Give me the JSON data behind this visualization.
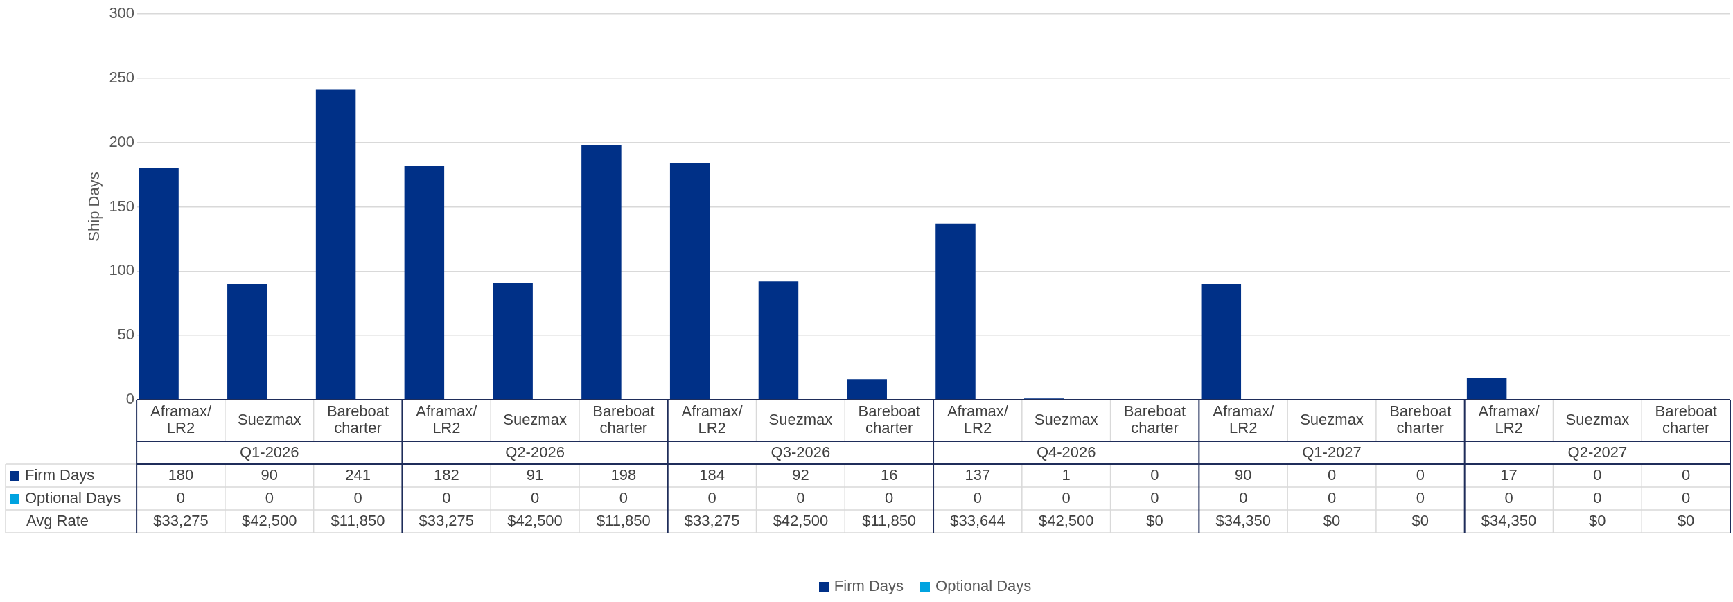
{
  "chart_data": {
    "type": "bar",
    "ylabel": "Ship Days",
    "categories": [
      "Aframax/LR2",
      "Suezmax",
      "Bareboat charter",
      "Aframax/LR2",
      "Suezmax",
      "Bareboat charter",
      "Aframax/LR2",
      "Suezmax",
      "Bareboat charter",
      "Aframax/LR2",
      "Suezmax",
      "Bareboat charter",
      "Aframax/LR2",
      "Suezmax",
      "Bareboat charter",
      "Aframax/LR2",
      "Suezmax",
      "Bareboat charter"
    ],
    "annotations": [
      "Q1-2026",
      "Q2-2026",
      "Q3-2026",
      "Q4-2026",
      "Q1-2027",
      "Q2-2027"
    ],
    "series": [
      {
        "name": "Firm Days",
        "color": "#003087",
        "values": [
          180,
          90,
          241,
          182,
          91,
          198,
          184,
          92,
          16,
          137,
          1,
          0,
          90,
          0,
          0,
          17,
          0,
          0
        ]
      },
      {
        "name": "Optional Days",
        "color": "#00a3e0",
        "values": [
          0,
          0,
          0,
          0,
          0,
          0,
          0,
          0,
          0,
          0,
          0,
          0,
          0,
          0,
          0,
          0,
          0,
          0
        ]
      },
      {
        "name": "Avg Rate",
        "values": [
          null,
          null,
          null,
          null,
          null,
          null,
          null,
          null,
          null,
          null,
          null,
          null,
          null,
          null,
          null,
          null,
          null,
          null
        ],
        "value_labels": [
          "$33,275",
          "$42,500",
          "$11,850",
          "$33,275",
          "$42,500",
          "$11,850",
          "$33,275",
          "$42,500",
          "$11,850",
          "$33,644",
          "$42,500",
          "$0",
          "$34,350",
          "$0",
          "$0",
          "$34,350",
          "$0",
          "$0"
        ]
      }
    ],
    "ylim": [
      0,
      300
    ],
    "yticks": [
      0,
      50,
      100,
      150,
      200,
      250,
      300
    ],
    "grid": "y",
    "legend": "bottom",
    "data_labels": true
  }
}
